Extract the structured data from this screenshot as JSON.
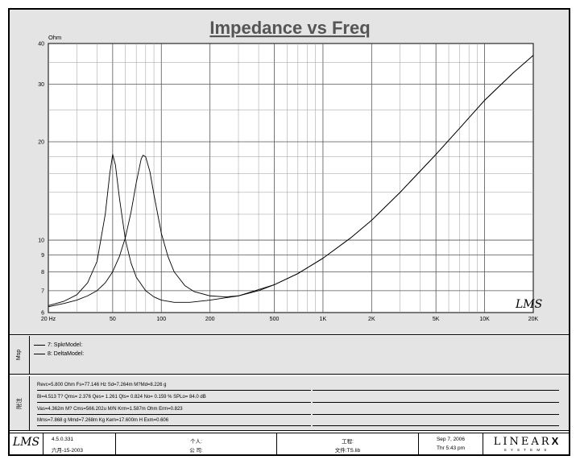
{
  "chart_data": {
    "type": "line",
    "title": "Impedance vs Freq",
    "ylabel": "Ohm",
    "xlabel": "",
    "x_scale": "log",
    "y_scale": "log",
    "xlim": [
      20,
      20000
    ],
    "ylim": [
      6,
      40
    ],
    "x_ticks": [
      {
        "value": 20,
        "label": "20  Hz"
      },
      {
        "value": 50,
        "label": "50"
      },
      {
        "value": 100,
        "label": "100"
      },
      {
        "value": 200,
        "label": "200"
      },
      {
        "value": 500,
        "label": "500"
      },
      {
        "value": 1000,
        "label": "1K"
      },
      {
        "value": 2000,
        "label": "2K"
      },
      {
        "value": 5000,
        "label": "5K"
      },
      {
        "value": 10000,
        "label": "10K"
      },
      {
        "value": 20000,
        "label": "20K"
      }
    ],
    "y_ticks": [
      {
        "value": 6,
        "label": "6"
      },
      {
        "value": 7,
        "label": "7"
      },
      {
        "value": 8,
        "label": "8"
      },
      {
        "value": 9,
        "label": "9"
      },
      {
        "value": 10,
        "label": "10"
      },
      {
        "value": 20,
        "label": "20"
      },
      {
        "value": 30,
        "label": "30"
      },
      {
        "value": 40,
        "label": "40"
      }
    ],
    "grid": true,
    "series": [
      {
        "name": "7: SpkrModel:",
        "color": "#000000",
        "x": [
          20,
          25,
          30,
          35,
          40,
          45,
          48,
          50,
          52,
          55,
          60,
          65,
          70,
          80,
          90,
          100,
          120,
          150,
          200,
          300,
          500,
          700,
          1000,
          1500,
          2000,
          3000,
          5000,
          7000,
          10000,
          15000,
          20000
        ],
        "y": [
          6.3,
          6.5,
          6.8,
          7.4,
          8.6,
          12.0,
          16.0,
          18.3,
          17.0,
          13.5,
          10.0,
          8.5,
          7.7,
          7.0,
          6.7,
          6.55,
          6.45,
          6.45,
          6.55,
          6.75,
          7.3,
          7.9,
          8.8,
          10.2,
          11.5,
          14.0,
          18.3,
          22.0,
          26.8,
          32.5,
          36.8
        ]
      },
      {
        "name": "8: DeltaModel:",
        "color": "#000000",
        "x": [
          20,
          25,
          30,
          35,
          40,
          45,
          50,
          55,
          60,
          65,
          70,
          75,
          77,
          80,
          85,
          90,
          100,
          110,
          120,
          140,
          160,
          200,
          250,
          300,
          400,
          500,
          700,
          1000,
          1500,
          2000,
          3000,
          5000,
          7000,
          10000,
          15000,
          20000
        ],
        "y": [
          6.25,
          6.4,
          6.55,
          6.75,
          7.0,
          7.4,
          8.0,
          8.9,
          10.2,
          12.2,
          15.0,
          17.7,
          18.2,
          18.0,
          16.2,
          13.8,
          10.5,
          8.9,
          8.0,
          7.25,
          6.95,
          6.75,
          6.7,
          6.75,
          7.0,
          7.3,
          7.9,
          8.8,
          10.2,
          11.5,
          14.0,
          18.3,
          22.0,
          26.8,
          32.5,
          36.8
        ]
      }
    ]
  },
  "watermark": "LMS",
  "legend": {
    "side_label": "Msp",
    "items": [
      "7: SpkrModel:",
      "8: DeltaModel:"
    ]
  },
  "params": {
    "side_label": "附注",
    "rows": [
      "Revc=5.800 Ohm  Fs=77.146 Hz  Sd=7.264m M?Md=8.226 g",
      "Bl=4.513 T?  Qms= 2.376  Qes= 1.261  Qts= 0.824  No= 0.159 %  SPLo= 84.0 dB",
      "Vas=4.362m M? Cms=566.202u M/N  Krm=1.587m Ohm   Erm=0.823",
      "Mms=7.868 g  Mmd=7.268m Kg  Kem=17.600m H   Exm=0.606"
    ]
  },
  "footer": {
    "logo": "LMS",
    "version": "4.5.0.331",
    "date_line": "六月-15-2003",
    "person_label": "个人:",
    "company_label": "公 司:",
    "project_label": "工程:",
    "file_label": "文件:TS.lib",
    "date": "Sep  7, 2006",
    "time": "Thr  5:43 pm",
    "brand_top": "LINEAR",
    "brand_x": "X",
    "brand_bottom": "S Y S T E M S"
  }
}
